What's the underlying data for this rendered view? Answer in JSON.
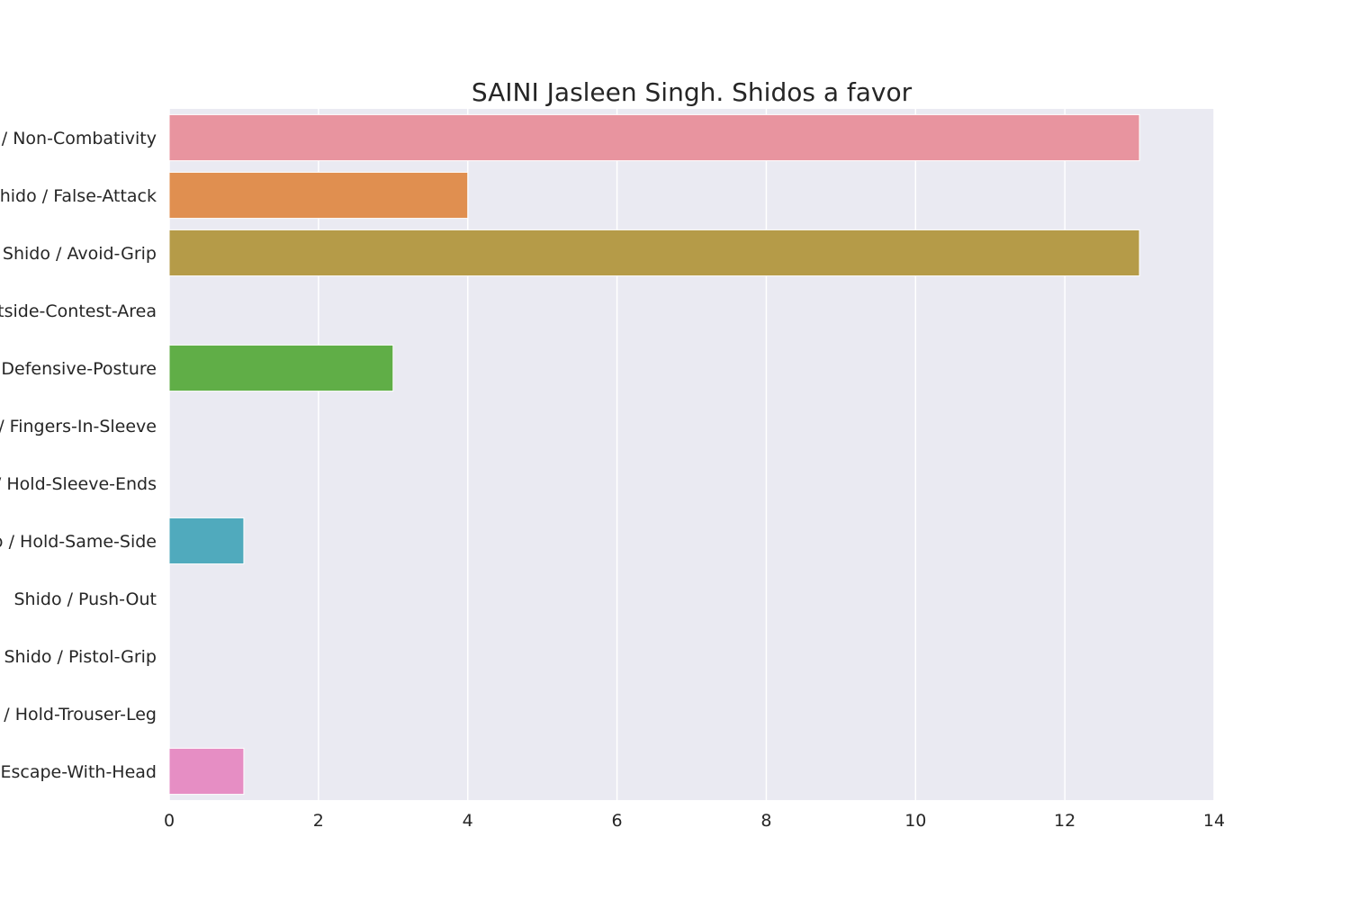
{
  "chart_data": {
    "type": "bar",
    "orientation": "horizontal",
    "title": "SAINI Jasleen Singh. Shidos a favor",
    "xlabel": "",
    "ylabel": "",
    "categories": [
      "Shido / Non-Combativity",
      "Shido / False-Attack",
      "Shido / Avoid-Grip",
      "Shido / Outside-Contest-Area",
      "Shido / Defensive-Posture",
      "Shido / Fingers-In-Sleeve",
      "Shido / Hold-Sleeve-Ends",
      "Shido / Hold-Same-Side",
      "Shido / Push-Out",
      "Shido / Pistol-Grip",
      "Shido / Hold-Trouser-Leg",
      "Shido / Escape-With-Head"
    ],
    "values": [
      13,
      4,
      13,
      0,
      3,
      0,
      0,
      1,
      0,
      0,
      0,
      1
    ],
    "colors": [
      "#e8949f",
      "#e08f50",
      "#b59b48",
      "#8fa94a",
      "#60ae47",
      "#4fad8c",
      "#52aba0",
      "#50aabd",
      "#5aa3d9",
      "#a39fe0",
      "#dd89e0",
      "#e68ec4"
    ],
    "xlim": [
      0,
      14
    ],
    "xticks": [
      0,
      2,
      4,
      6,
      8,
      10,
      12,
      14
    ],
    "grid": true,
    "background": "#eaeaf2",
    "grid_color": "#ffffff"
  }
}
